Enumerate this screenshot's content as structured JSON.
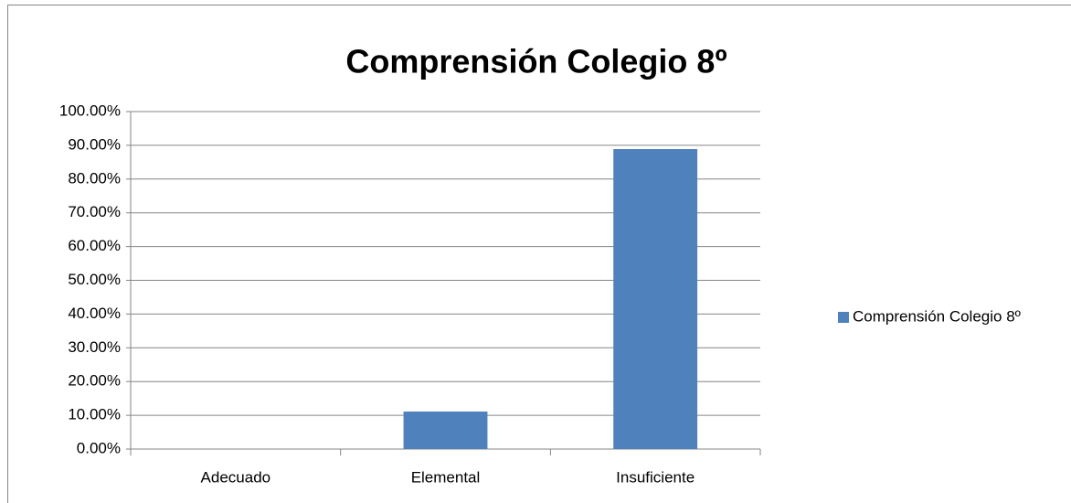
{
  "chart_data": {
    "type": "bar",
    "title": "Comprensión Colegio 8º",
    "categories": [
      "Adecuado",
      "Elemental",
      "Insuficiente"
    ],
    "series": [
      {
        "name": "Comprensión Colegio 8º",
        "color": "#4f81bd",
        "values": [
          0,
          11.11,
          88.89
        ]
      }
    ],
    "ylim": [
      0,
      100
    ],
    "yticks": [
      {
        "value": 0,
        "label": "0.00%"
      },
      {
        "value": 10,
        "label": "10.00%"
      },
      {
        "value": 20,
        "label": "20.00%"
      },
      {
        "value": 30,
        "label": "30.00%"
      },
      {
        "value": 40,
        "label": "40.00%"
      },
      {
        "value": 50,
        "label": "50.00%"
      },
      {
        "value": 60,
        "label": "60.00%"
      },
      {
        "value": 70,
        "label": "70.00%"
      },
      {
        "value": 80,
        "label": "80.00%"
      },
      {
        "value": 90,
        "label": "90.00%"
      },
      {
        "value": 100,
        "label": "100.00%"
      }
    ],
    "grid": true,
    "legend": "right"
  }
}
